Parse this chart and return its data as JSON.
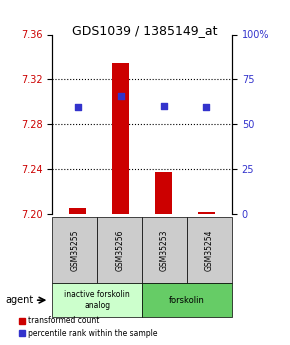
{
  "title": "GDS1039 / 1385149_at",
  "samples": [
    "GSM35255",
    "GSM35256",
    "GSM35253",
    "GSM35254"
  ],
  "bar_values": [
    7.205,
    7.335,
    7.237,
    7.202
  ],
  "bar_base": 7.2,
  "blue_dot_values": [
    7.295,
    7.305,
    7.296,
    7.295
  ],
  "ylim": [
    7.2,
    7.36
  ],
  "yticks_left": [
    7.2,
    7.24,
    7.28,
    7.32,
    7.36
  ],
  "yticks_right": [
    0,
    25,
    50,
    75,
    100
  ],
  "bar_color": "#cc0000",
  "dot_color": "#3333cc",
  "group1_label": "inactive forskolin\nanalog",
  "group2_label": "forskolin",
  "group1_color": "#ccffcc",
  "group2_color": "#66cc66",
  "agent_label": "agent",
  "legend_bar_label": "transformed count",
  "legend_dot_label": "percentile rank within the sample",
  "sample_box_color": "#cccccc",
  "bar_width": 0.4
}
